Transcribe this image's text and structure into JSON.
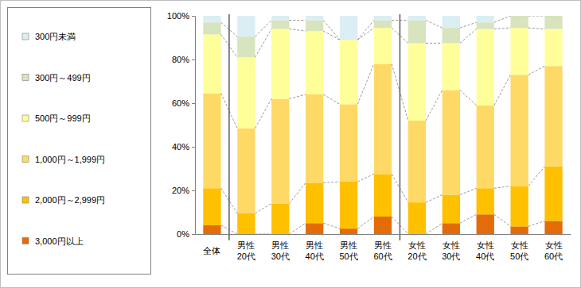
{
  "chart_data": {
    "type": "bar",
    "stacked": true,
    "legend": "left",
    "categories": [
      "全体",
      "男性\n20代",
      "男性\n30代",
      "男性\n40代",
      "男性\n50代",
      "男性\n60代",
      "女性\n20代",
      "女性\n30代",
      "女性\n40代",
      "女性\n50代",
      "女性\n60代"
    ],
    "series": [
      {
        "name": "3,000円以上",
        "color": "#e36c09",
        "values": [
          4,
          0,
          0,
          5,
          2.5,
          8,
          0,
          5,
          9,
          3.5,
          6
        ]
      },
      {
        "name": "2,000円～2,999円",
        "color": "#ffc000",
        "values": [
          17,
          9.5,
          14,
          18.5,
          21.5,
          19.5,
          14.5,
          13,
          12,
          18.5,
          25
        ]
      },
      {
        "name": "1,000円～1,999円",
        "color": "#ffd966",
        "values": [
          43.5,
          39,
          48,
          40.5,
          35.5,
          50.5,
          37.5,
          48,
          38,
          51,
          46
        ]
      },
      {
        "name": "500円～999円",
        "color": "#ffff99",
        "values": [
          27,
          32.5,
          32,
          29,
          29.5,
          16.5,
          35.5,
          21.5,
          35,
          21.5,
          17
        ]
      },
      {
        "name": "300円～499円",
        "color": "#d7e4bd",
        "values": [
          5.5,
          9.5,
          4,
          5,
          0,
          3.5,
          10.5,
          7,
          3,
          5.5,
          6
        ]
      },
      {
        "name": "300円未満",
        "color": "#daeef3",
        "values": [
          3,
          9.5,
          2,
          2,
          11,
          2,
          2,
          5.5,
          3,
          0,
          0
        ]
      }
    ],
    "ylim": [
      0,
      100
    ],
    "yticks": [
      {
        "value": 0,
        "label": "0%"
      },
      {
        "value": 20,
        "label": "20%"
      },
      {
        "value": 40,
        "label": "40%"
      },
      {
        "value": 60,
        "label": "60%"
      },
      {
        "value": 80,
        "label": "80%"
      },
      {
        "value": 100,
        "label": "100%"
      }
    ]
  }
}
